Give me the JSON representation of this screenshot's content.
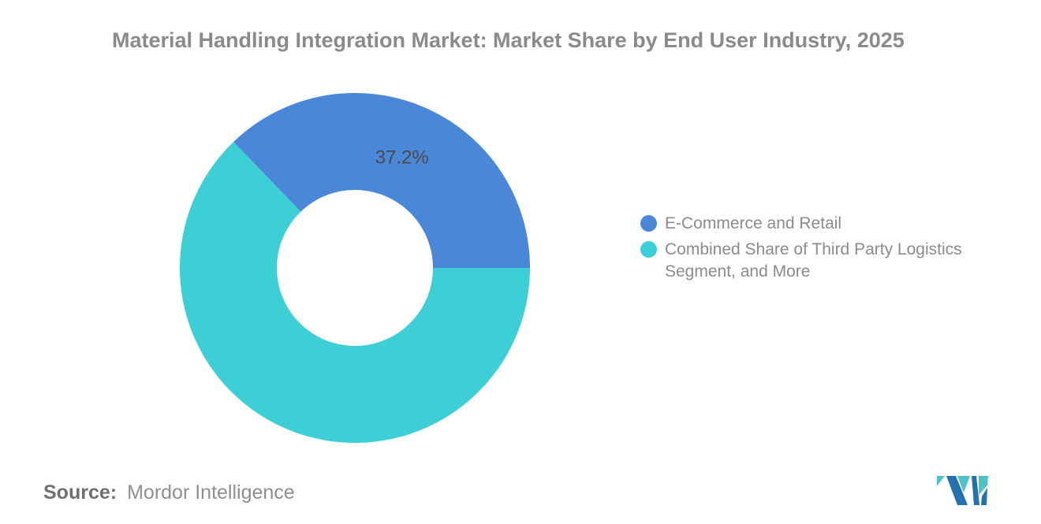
{
  "title": "Material Handling Integration Market: Market Share by End User Industry, 2025",
  "source": {
    "label": "Source:",
    "value": "Mordor Intelligence"
  },
  "logo": {
    "teal": "#4DC3C7",
    "blue": "#2471AE"
  },
  "colors": {
    "title_gray": "#8A8A8A",
    "slice_label": "#4A4A4A",
    "legend_text": "#8B8B8B",
    "background": "#FFFFFF"
  },
  "chart_data": {
    "type": "pie",
    "subtype": "donut",
    "title": "Material Handling Integration Market: Market Share by End User Industry, 2025",
    "hole_ratio": 0.446,
    "start_angle_deg": -43.92,
    "direction": "clockwise",
    "legend_position": "right",
    "grid": false,
    "series": [
      {
        "name": "E-Commerce and Retail",
        "value": 37.2,
        "label": "37.2%",
        "color": "#4A87D9"
      },
      {
        "name": "Combined Share of Third Party Logistics Segment, and More",
        "value": 62.8,
        "label": "",
        "color": "#3DCFD6"
      }
    ]
  }
}
